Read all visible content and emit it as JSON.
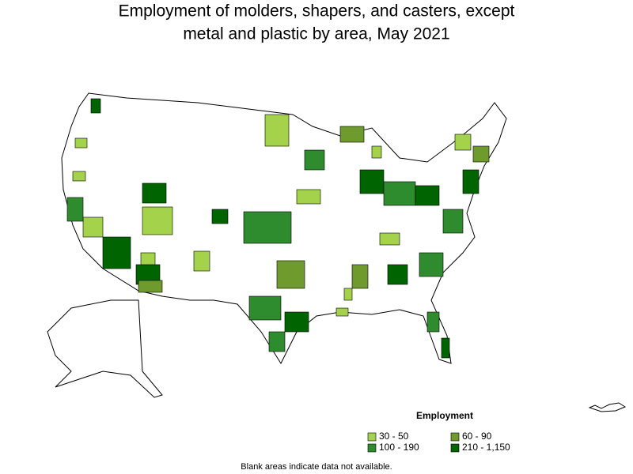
{
  "title": [
    "Employment of molders, shapers, and casters, except",
    "metal and plastic by area, May 2021"
  ],
  "legend": {
    "title": "Employment",
    "items": [
      {
        "label": "30 - 50",
        "color": "#a4d24a"
      },
      {
        "label": "60 - 90",
        "color": "#6e9a2e"
      },
      {
        "label": "100 - 190",
        "color": "#2e8b2e"
      },
      {
        "label": "210 - 1,150",
        "color": "#006400"
      }
    ]
  },
  "footnote": "Blank areas indicate data not available."
}
